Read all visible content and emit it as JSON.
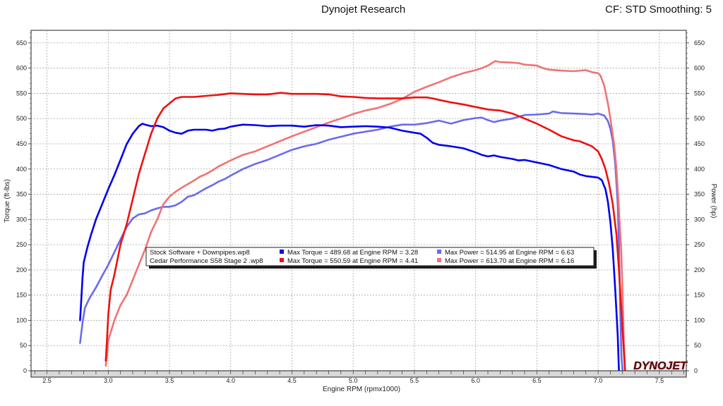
{
  "header": {
    "title": "Dynojet Research",
    "right": "CF: STD Smoothing: 5"
  },
  "logo": {
    "text": "DYNOJET"
  },
  "chart_data": {
    "type": "line",
    "xlabel": "Engine RPM (rpmx1000)",
    "ylabel_left": "Torque (ft-lbs)",
    "ylabel_right": "Power (hp)",
    "xlim": [
      2.37,
      7.72
    ],
    "ylim": [
      0,
      675
    ],
    "x_ticks": [
      2.5,
      3.0,
      3.5,
      4.0,
      4.5,
      5.0,
      5.5,
      6.0,
      6.5,
      7.0,
      7.5
    ],
    "x_tick_labels": [
      "2.5",
      "3.0",
      "3.5",
      "4.0",
      "4.5",
      "5.0",
      "5.5",
      "6.0",
      "6.5",
      "7.0",
      "7.5"
    ],
    "y_ticks": [
      0,
      50,
      100,
      150,
      200,
      250,
      300,
      350,
      400,
      450,
      500,
      550,
      600,
      650
    ],
    "y_tick_labels": [
      "0",
      "50",
      "100",
      "150",
      "200",
      "250",
      "300",
      "350",
      "400",
      "450",
      "500",
      "550",
      "600",
      "650"
    ],
    "grid": true,
    "legend_position": "center-left",
    "legend": [
      {
        "file": "Stock Software + Downpipes.wp8",
        "torque_text": "Max Torque = 489.68 at Engine RPM = 3.28",
        "power_text": "Max Power = 514.95 at Engine RPM = 6.63",
        "torque_color": "#0000ee",
        "power_color": "#6b6bea"
      },
      {
        "file": "Cedar Performance S58 Stage 2 .wp8",
        "torque_text": "Max Torque = 550.59 at Engine RPM = 4.41",
        "power_text": "Max Power = 613.70 at Engine RPM = 6.16",
        "torque_color": "#ee1111",
        "power_color": "#f07373"
      }
    ],
    "series": [
      {
        "key": "stock_power",
        "color": "#6b6bea",
        "points": [
          [
            2.77,
            55
          ],
          [
            2.79,
            95
          ],
          [
            2.81,
            125
          ],
          [
            2.85,
            145
          ],
          [
            2.9,
            165
          ],
          [
            2.95,
            188
          ],
          [
            3.0,
            210
          ],
          [
            3.05,
            235
          ],
          [
            3.1,
            260
          ],
          [
            3.15,
            285
          ],
          [
            3.2,
            302
          ],
          [
            3.25,
            310
          ],
          [
            3.3,
            312
          ],
          [
            3.35,
            318
          ],
          [
            3.4,
            322
          ],
          [
            3.45,
            325
          ],
          [
            3.5,
            325
          ],
          [
            3.55,
            328
          ],
          [
            3.6,
            335
          ],
          [
            3.65,
            345
          ],
          [
            3.7,
            348
          ],
          [
            3.75,
            355
          ],
          [
            3.8,
            362
          ],
          [
            3.85,
            368
          ],
          [
            3.9,
            375
          ],
          [
            3.95,
            380
          ],
          [
            4.0,
            387
          ],
          [
            4.1,
            400
          ],
          [
            4.2,
            410
          ],
          [
            4.3,
            418
          ],
          [
            4.4,
            428
          ],
          [
            4.5,
            438
          ],
          [
            4.6,
            445
          ],
          [
            4.7,
            450
          ],
          [
            4.8,
            458
          ],
          [
            4.9,
            464
          ],
          [
            5.0,
            470
          ],
          [
            5.1,
            474
          ],
          [
            5.2,
            478
          ],
          [
            5.3,
            484
          ],
          [
            5.4,
            488
          ],
          [
            5.5,
            488
          ],
          [
            5.6,
            491
          ],
          [
            5.7,
            496
          ],
          [
            5.8,
            490
          ],
          [
            5.9,
            497
          ],
          [
            6.0,
            501
          ],
          [
            6.05,
            502
          ],
          [
            6.1,
            497
          ],
          [
            6.15,
            493
          ],
          [
            6.2,
            496
          ],
          [
            6.3,
            500
          ],
          [
            6.4,
            507
          ],
          [
            6.5,
            508
          ],
          [
            6.6,
            510
          ],
          [
            6.63,
            514
          ],
          [
            6.7,
            511
          ],
          [
            6.8,
            510
          ],
          [
            6.9,
            509
          ],
          [
            6.95,
            508
          ],
          [
            7.0,
            510
          ],
          [
            7.05,
            506
          ],
          [
            7.08,
            495
          ],
          [
            7.1,
            480
          ],
          [
            7.12,
            455
          ],
          [
            7.14,
            410
          ],
          [
            7.16,
            330
          ],
          [
            7.17,
            250
          ],
          [
            7.18,
            130
          ],
          [
            7.19,
            30
          ],
          [
            7.2,
            0
          ]
        ]
      },
      {
        "key": "stage2_power",
        "color": "#f07373",
        "points": [
          [
            2.98,
            10
          ],
          [
            2.99,
            30
          ],
          [
            3.0,
            60
          ],
          [
            3.05,
            100
          ],
          [
            3.1,
            130
          ],
          [
            3.15,
            150
          ],
          [
            3.2,
            180
          ],
          [
            3.25,
            210
          ],
          [
            3.3,
            240
          ],
          [
            3.35,
            275
          ],
          [
            3.4,
            300
          ],
          [
            3.45,
            330
          ],
          [
            3.5,
            345
          ],
          [
            3.55,
            355
          ],
          [
            3.6,
            363
          ],
          [
            3.65,
            370
          ],
          [
            3.7,
            377
          ],
          [
            3.75,
            385
          ],
          [
            3.8,
            390
          ],
          [
            3.85,
            397
          ],
          [
            3.9,
            405
          ],
          [
            4.0,
            417
          ],
          [
            4.1,
            428
          ],
          [
            4.2,
            435
          ],
          [
            4.3,
            445
          ],
          [
            4.4,
            455
          ],
          [
            4.5,
            465
          ],
          [
            4.6,
            474
          ],
          [
            4.7,
            483
          ],
          [
            4.8,
            492
          ],
          [
            4.9,
            500
          ],
          [
            5.0,
            509
          ],
          [
            5.1,
            516
          ],
          [
            5.2,
            521
          ],
          [
            5.3,
            529
          ],
          [
            5.4,
            539
          ],
          [
            5.5,
            553
          ],
          [
            5.6,
            563
          ],
          [
            5.7,
            572
          ],
          [
            5.8,
            582
          ],
          [
            5.9,
            590
          ],
          [
            6.0,
            596
          ],
          [
            6.05,
            600
          ],
          [
            6.1,
            605
          ],
          [
            6.16,
            614
          ],
          [
            6.2,
            612
          ],
          [
            6.3,
            611
          ],
          [
            6.35,
            610
          ],
          [
            6.4,
            607
          ],
          [
            6.5,
            605
          ],
          [
            6.55,
            600
          ],
          [
            6.6,
            597
          ],
          [
            6.7,
            595
          ],
          [
            6.8,
            594
          ],
          [
            6.9,
            596
          ],
          [
            6.95,
            592
          ],
          [
            7.0,
            590
          ],
          [
            7.02,
            585
          ],
          [
            7.05,
            565
          ],
          [
            7.08,
            530
          ],
          [
            7.1,
            500
          ],
          [
            7.13,
            450
          ],
          [
            7.15,
            400
          ],
          [
            7.17,
            320
          ],
          [
            7.19,
            230
          ],
          [
            7.2,
            150
          ],
          [
            7.21,
            60
          ],
          [
            7.22,
            0
          ]
        ]
      },
      {
        "key": "stock_torque",
        "color": "#0000ee",
        "points": [
          [
            2.77,
            100
          ],
          [
            2.78,
            140
          ],
          [
            2.79,
            185
          ],
          [
            2.8,
            215
          ],
          [
            2.83,
            245
          ],
          [
            2.86,
            270
          ],
          [
            2.9,
            300
          ],
          [
            2.95,
            330
          ],
          [
            3.0,
            360
          ],
          [
            3.05,
            388
          ],
          [
            3.1,
            418
          ],
          [
            3.15,
            449
          ],
          [
            3.2,
            470
          ],
          [
            3.25,
            485
          ],
          [
            3.28,
            490
          ],
          [
            3.3,
            488
          ],
          [
            3.35,
            485
          ],
          [
            3.4,
            486
          ],
          [
            3.45,
            483
          ],
          [
            3.5,
            476
          ],
          [
            3.55,
            472
          ],
          [
            3.6,
            470
          ],
          [
            3.65,
            476
          ],
          [
            3.7,
            478
          ],
          [
            3.75,
            478
          ],
          [
            3.8,
            478
          ],
          [
            3.85,
            476
          ],
          [
            3.9,
            479
          ],
          [
            3.95,
            480
          ],
          [
            4.0,
            484
          ],
          [
            4.05,
            486
          ],
          [
            4.1,
            488
          ],
          [
            4.2,
            487
          ],
          [
            4.3,
            485
          ],
          [
            4.4,
            486
          ],
          [
            4.5,
            486
          ],
          [
            4.6,
            484
          ],
          [
            4.7,
            487
          ],
          [
            4.8,
            486
          ],
          [
            4.9,
            483
          ],
          [
            5.0,
            484
          ],
          [
            5.1,
            485
          ],
          [
            5.2,
            484
          ],
          [
            5.3,
            482
          ],
          [
            5.4,
            476
          ],
          [
            5.5,
            472
          ],
          [
            5.55,
            470
          ],
          [
            5.6,
            462
          ],
          [
            5.65,
            452
          ],
          [
            5.7,
            448
          ],
          [
            5.8,
            445
          ],
          [
            5.9,
            441
          ],
          [
            6.0,
            433
          ],
          [
            6.05,
            428
          ],
          [
            6.1,
            425
          ],
          [
            6.15,
            427
          ],
          [
            6.2,
            424
          ],
          [
            6.3,
            420
          ],
          [
            6.35,
            417
          ],
          [
            6.4,
            418
          ],
          [
            6.5,
            413
          ],
          [
            6.6,
            408
          ],
          [
            6.7,
            400
          ],
          [
            6.8,
            395
          ],
          [
            6.85,
            389
          ],
          [
            6.9,
            386
          ],
          [
            7.0,
            383
          ],
          [
            7.03,
            378
          ],
          [
            7.06,
            360
          ],
          [
            7.08,
            335
          ],
          [
            7.1,
            295
          ],
          [
            7.12,
            240
          ],
          [
            7.14,
            160
          ],
          [
            7.16,
            70
          ],
          [
            7.17,
            0
          ]
        ]
      },
      {
        "key": "stage2_torque",
        "color": "#ee1111",
        "points": [
          [
            2.98,
            20
          ],
          [
            2.99,
            60
          ],
          [
            3.0,
            110
          ],
          [
            3.02,
            160
          ],
          [
            3.05,
            190
          ],
          [
            3.1,
            250
          ],
          [
            3.15,
            290
          ],
          [
            3.2,
            340
          ],
          [
            3.25,
            390
          ],
          [
            3.3,
            430
          ],
          [
            3.35,
            470
          ],
          [
            3.4,
            500
          ],
          [
            3.45,
            520
          ],
          [
            3.5,
            530
          ],
          [
            3.55,
            540
          ],
          [
            3.6,
            543
          ],
          [
            3.7,
            543
          ],
          [
            3.8,
            545
          ],
          [
            3.9,
            547
          ],
          [
            4.0,
            550
          ],
          [
            4.1,
            549
          ],
          [
            4.2,
            548
          ],
          [
            4.3,
            548
          ],
          [
            4.41,
            551
          ],
          [
            4.5,
            549
          ],
          [
            4.6,
            549
          ],
          [
            4.7,
            549
          ],
          [
            4.8,
            548
          ],
          [
            4.9,
            544
          ],
          [
            5.0,
            543
          ],
          [
            5.1,
            541
          ],
          [
            5.2,
            540
          ],
          [
            5.3,
            540
          ],
          [
            5.4,
            540
          ],
          [
            5.5,
            542
          ],
          [
            5.6,
            542
          ],
          [
            5.65,
            540
          ],
          [
            5.7,
            537
          ],
          [
            5.8,
            532
          ],
          [
            5.9,
            528
          ],
          [
            6.0,
            523
          ],
          [
            6.1,
            518
          ],
          [
            6.2,
            516
          ],
          [
            6.3,
            510
          ],
          [
            6.4,
            500
          ],
          [
            6.5,
            490
          ],
          [
            6.6,
            478
          ],
          [
            6.7,
            465
          ],
          [
            6.8,
            457
          ],
          [
            6.85,
            455
          ],
          [
            6.9,
            450
          ],
          [
            6.95,
            445
          ],
          [
            7.0,
            435
          ],
          [
            7.03,
            420
          ],
          [
            7.06,
            400
          ],
          [
            7.09,
            370
          ],
          [
            7.12,
            330
          ],
          [
            7.15,
            270
          ],
          [
            7.17,
            200
          ],
          [
            7.19,
            120
          ],
          [
            7.21,
            40
          ],
          [
            7.22,
            0
          ]
        ]
      }
    ]
  }
}
